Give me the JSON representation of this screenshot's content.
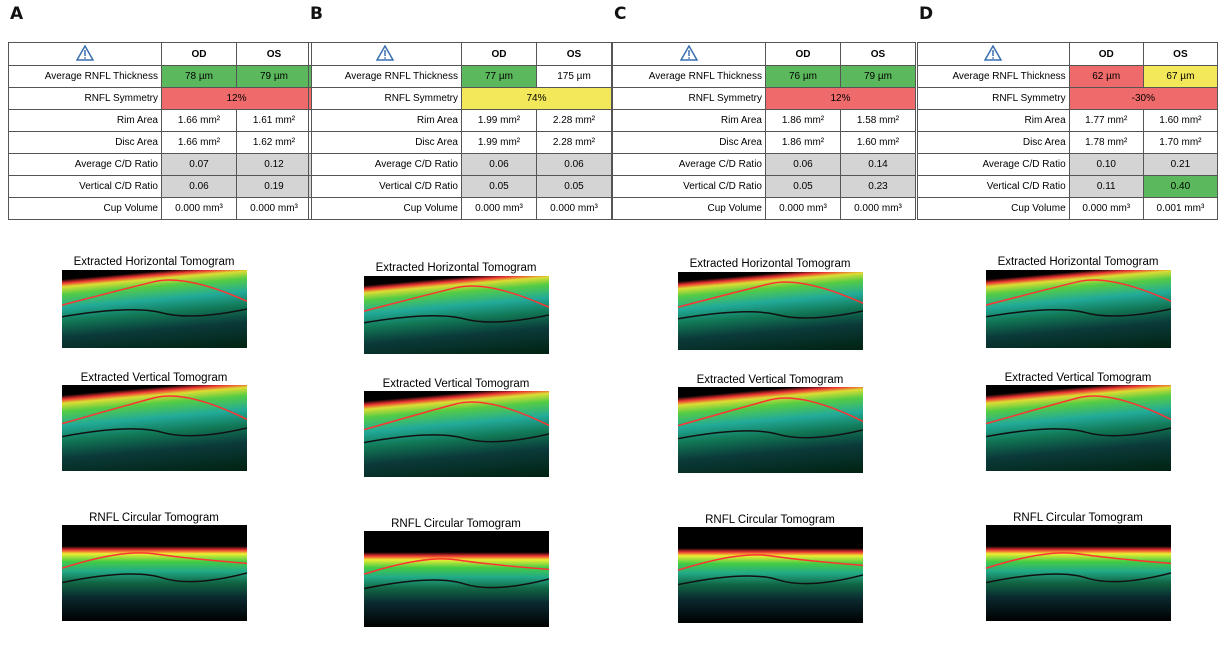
{
  "panels": [
    {
      "label": "A",
      "header": [
        "OD",
        "OS"
      ],
      "rows": [
        {
          "label": "Average RNFL Thickness",
          "cells": [
            "78 µm",
            "79 µm"
          ],
          "colors": [
            "#5cb85c",
            "#5cb85c"
          ]
        },
        {
          "label": "RNFL Symmetry",
          "cells": [
            "12%"
          ],
          "colors": [
            "#ef6b6b"
          ]
        },
        {
          "label": "Rim Area",
          "cells": [
            "1.66 mm²",
            "1.61 mm²"
          ],
          "colors": [
            "#ffffff",
            "#ffffff"
          ]
        },
        {
          "label": "Disc Area",
          "cells": [
            "1.66 mm²",
            "1.62 mm²"
          ],
          "colors": [
            "#ffffff",
            "#ffffff"
          ]
        },
        {
          "label": "Average C/D Ratio",
          "cells": [
            "0.07",
            "0.12"
          ],
          "colors": [
            "#d4d4d4",
            "#d4d4d4"
          ]
        },
        {
          "label": "Vertical C/D Ratio",
          "cells": [
            "0.06",
            "0.19"
          ],
          "colors": [
            "#d4d4d4",
            "#d4d4d4"
          ]
        },
        {
          "label": "Cup Volume",
          "cells": [
            "0.000 mm³",
            "0.000 mm³"
          ],
          "colors": [
            "#ffffff",
            "#ffffff"
          ]
        }
      ],
      "tomograms": [
        "Extracted Horizontal Tomogram",
        "Extracted Vertical Tomogram",
        "RNFL Circular Tomogram"
      ]
    },
    {
      "label": "B",
      "header": [
        "OD",
        "OS"
      ],
      "rows": [
        {
          "label": "Average RNFL Thickness",
          "cells": [
            "77 µm",
            "175 µm"
          ],
          "colors": [
            "#5cb85c",
            "#ffffff"
          ]
        },
        {
          "label": "RNFL Symmetry",
          "cells": [
            "74%"
          ],
          "colors": [
            "#f2e85a"
          ]
        },
        {
          "label": "Rim Area",
          "cells": [
            "1.99 mm²",
            "2.28 mm²"
          ],
          "colors": [
            "#ffffff",
            "#ffffff"
          ]
        },
        {
          "label": "Disc Area",
          "cells": [
            "1.99 mm²",
            "2.28 mm²"
          ],
          "colors": [
            "#ffffff",
            "#ffffff"
          ]
        },
        {
          "label": "Average C/D Ratio",
          "cells": [
            "0.06",
            "0.06"
          ],
          "colors": [
            "#d4d4d4",
            "#d4d4d4"
          ]
        },
        {
          "label": "Vertical C/D Ratio",
          "cells": [
            "0.05",
            "0.05"
          ],
          "colors": [
            "#d4d4d4",
            "#d4d4d4"
          ]
        },
        {
          "label": "Cup Volume",
          "cells": [
            "0.000 mm³",
            "0.000 mm³"
          ],
          "colors": [
            "#ffffff",
            "#ffffff"
          ]
        }
      ],
      "tomograms": [
        "Extracted Horizontal Tomogram",
        "Extracted Vertical Tomogram",
        "RNFL Circular Tomogram"
      ]
    },
    {
      "label": "C",
      "header": [
        "OD",
        "OS"
      ],
      "rows": [
        {
          "label": "Average RNFL Thickness",
          "cells": [
            "76 µm",
            "79 µm"
          ],
          "colors": [
            "#5cb85c",
            "#5cb85c"
          ]
        },
        {
          "label": "RNFL Symmetry",
          "cells": [
            "12%"
          ],
          "colors": [
            "#ef6b6b"
          ]
        },
        {
          "label": "Rim Area",
          "cells": [
            "1.86 mm²",
            "1.58 mm²"
          ],
          "colors": [
            "#ffffff",
            "#ffffff"
          ]
        },
        {
          "label": "Disc Area",
          "cells": [
            "1.86 mm²",
            "1.60 mm²"
          ],
          "colors": [
            "#ffffff",
            "#ffffff"
          ]
        },
        {
          "label": "Average C/D Ratio",
          "cells": [
            "0.06",
            "0.14"
          ],
          "colors": [
            "#d4d4d4",
            "#d4d4d4"
          ]
        },
        {
          "label": "Vertical C/D Ratio",
          "cells": [
            "0.05",
            "0.23"
          ],
          "colors": [
            "#d4d4d4",
            "#d4d4d4"
          ]
        },
        {
          "label": "Cup Volume",
          "cells": [
            "0.000 mm³",
            "0.000 mm³"
          ],
          "colors": [
            "#ffffff",
            "#ffffff"
          ]
        }
      ],
      "tomograms": [
        "Extracted Horizontal Tomogram",
        "Extracted Vertical Tomogram",
        "RNFL Circular Tomogram"
      ]
    },
    {
      "label": "D",
      "header": [
        "OD",
        "OS"
      ],
      "rows": [
        {
          "label": "Average RNFL Thickness",
          "cells": [
            "62 µm",
            "67 µm"
          ],
          "colors": [
            "#ef6b6b",
            "#f2e85a"
          ]
        },
        {
          "label": "RNFL Symmetry",
          "cells": [
            "-30%"
          ],
          "colors": [
            "#ef6b6b"
          ]
        },
        {
          "label": "Rim Area",
          "cells": [
            "1.77 mm²",
            "1.60 mm²"
          ],
          "colors": [
            "#ffffff",
            "#ffffff"
          ]
        },
        {
          "label": "Disc Area",
          "cells": [
            "1.78 mm²",
            "1.70 mm²"
          ],
          "colors": [
            "#ffffff",
            "#ffffff"
          ]
        },
        {
          "label": "Average C/D Ratio",
          "cells": [
            "0.10",
            "0.21"
          ],
          "colors": [
            "#d4d4d4",
            "#d4d4d4"
          ]
        },
        {
          "label": "Vertical C/D Ratio",
          "cells": [
            "0.11",
            "0.40"
          ],
          "colors": [
            "#d4d4d4",
            "#5cb85c"
          ]
        },
        {
          "label": "Cup Volume",
          "cells": [
            "0.000 mm³",
            "0.001 mm³"
          ],
          "colors": [
            "#ffffff",
            "#ffffff"
          ]
        }
      ],
      "tomograms": [
        "Extracted Horizontal Tomogram",
        "Extracted Vertical Tomogram",
        "RNFL Circular Tomogram"
      ]
    }
  ]
}
